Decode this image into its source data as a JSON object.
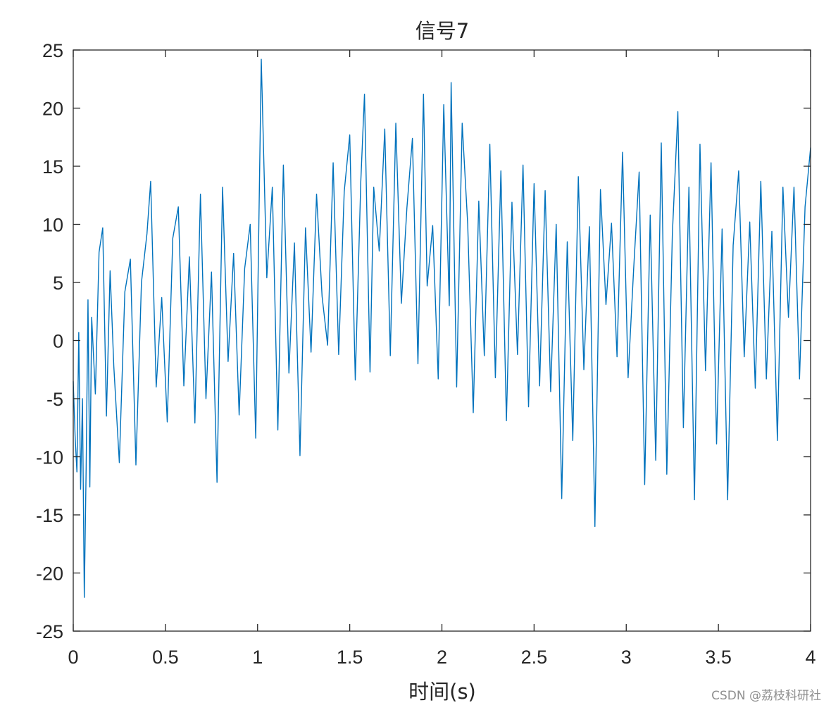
{
  "chart_data": {
    "type": "line",
    "title": "信号7",
    "xlabel": "时间(s)",
    "ylabel": "",
    "xlim": [
      0,
      4
    ],
    "ylim": [
      -25,
      25
    ],
    "xticks": [
      0,
      0.5,
      1,
      1.5,
      2,
      2.5,
      3,
      3.5,
      4
    ],
    "xtick_labels": [
      "0",
      "0.5",
      "1",
      "1.5",
      "2",
      "2.5",
      "3",
      "3.5",
      "4"
    ],
    "yticks": [
      25,
      20,
      15,
      10,
      5,
      0,
      -5,
      -10,
      -15,
      -20,
      -25
    ],
    "ytick_labels": [
      "25",
      "20",
      "15",
      "10",
      "5",
      "0",
      "-5",
      "-10",
      "-15",
      "-20",
      "-25"
    ],
    "grid": false,
    "box": true,
    "line_color": "#0072BD",
    "series": [
      {
        "x": [
          0,
          0.01,
          0.02,
          0.03,
          0.04,
          0.05,
          0.06,
          0.07,
          0.08,
          0.09,
          0.1,
          0.12,
          0.14,
          0.16,
          0.18,
          0.2,
          0.22,
          0.25,
          0.28,
          0.31,
          0.34,
          0.37,
          0.4,
          0.42,
          0.45,
          0.48,
          0.51,
          0.54,
          0.57,
          0.6,
          0.63,
          0.66,
          0.69,
          0.72,
          0.75,
          0.78,
          0.81,
          0.84,
          0.87,
          0.9,
          0.93,
          0.96,
          0.99,
          1.02,
          1.05,
          1.08,
          1.11,
          1.14,
          1.17,
          1.2,
          1.23,
          1.26,
          1.29,
          1.32,
          1.35,
          1.38,
          1.41,
          1.44,
          1.47,
          1.5,
          1.53,
          1.56,
          1.58,
          1.61,
          1.63,
          1.66,
          1.69,
          1.72,
          1.75,
          1.78,
          1.81,
          1.84,
          1.87,
          1.9,
          1.92,
          1.95,
          1.98,
          2.01,
          2.04,
          2.05,
          2.08,
          2.11,
          2.14,
          2.17,
          2.2,
          2.23,
          2.26,
          2.29,
          2.32,
          2.35,
          2.38,
          2.41,
          2.44,
          2.47,
          2.5,
          2.53,
          2.56,
          2.59,
          2.62,
          2.65,
          2.68,
          2.71,
          2.74,
          2.77,
          2.8,
          2.83,
          2.86,
          2.89,
          2.92,
          2.95,
          2.98,
          3.01,
          3.04,
          3.07,
          3.1,
          3.13,
          3.16,
          3.19,
          3.22,
          3.25,
          3.28,
          3.31,
          3.34,
          3.37,
          3.4,
          3.43,
          3.46,
          3.49,
          3.52,
          3.55,
          3.58,
          3.61,
          3.64,
          3.67,
          3.7,
          3.73,
          3.76,
          3.79,
          3.82,
          3.85,
          3.88,
          3.91,
          3.94,
          3.97,
          4.0
        ],
        "values": [
          -3.5,
          -8.2,
          -11.3,
          0.7,
          -12.8,
          -5.0,
          -22.1,
          -11.0,
          3.5,
          -12.6,
          2.0,
          -4.6,
          7.6,
          9.7,
          -6.5,
          6.0,
          -2.2,
          -10.5,
          4.2,
          7.0,
          -10.7,
          5.0,
          9.2,
          13.7,
          -4.0,
          3.7,
          -7.0,
          8.8,
          11.5,
          -3.9,
          7.2,
          -7.1,
          12.6,
          -5.0,
          5.9,
          -12.2,
          13.2,
          -1.8,
          7.5,
          -6.4,
          6.2,
          10.0,
          -8.4,
          24.2,
          5.4,
          13.2,
          -7.7,
          15.1,
          -2.8,
          8.4,
          -9.9,
          9.7,
          -1.0,
          12.6,
          3.8,
          -0.4,
          15.3,
          -1.2,
          12.8,
          17.7,
          -3.4,
          13.7,
          21.2,
          -2.7,
          13.2,
          7.7,
          18.2,
          -1.3,
          18.7,
          3.2,
          11.4,
          17.4,
          -2.0,
          21.2,
          4.7,
          9.9,
          -3.3,
          20.3,
          3.0,
          22.2,
          -4.0,
          18.7,
          10.0,
          -6.2,
          12.0,
          -1.3,
          16.9,
          -3.2,
          14.6,
          -6.9,
          11.9,
          -1.2,
          15.1,
          -5.7,
          13.5,
          -3.9,
          12.9,
          -4.4,
          10.0,
          -13.6,
          8.5,
          -8.6,
          14.1,
          -2.5,
          9.8,
          -16.0,
          13.0,
          3.1,
          10.1,
          -1.4,
          16.2,
          -3.2,
          6.1,
          14.5,
          -12.4,
          10.8,
          -10.3,
          17.0,
          -11.5,
          9.1,
          19.7,
          -7.5,
          13.2,
          -13.7,
          16.9,
          -2.6,
          15.3,
          -8.9,
          9.6,
          -13.7,
          8.2,
          14.6,
          -1.4,
          10.2,
          -4.1,
          13.7,
          -3.3,
          9.4,
          -8.6,
          13.2,
          2.0,
          13.2,
          -3.3,
          11.5,
          16.6
        ]
      }
    ]
  },
  "watermark": "CSDN @荔枝科研社"
}
